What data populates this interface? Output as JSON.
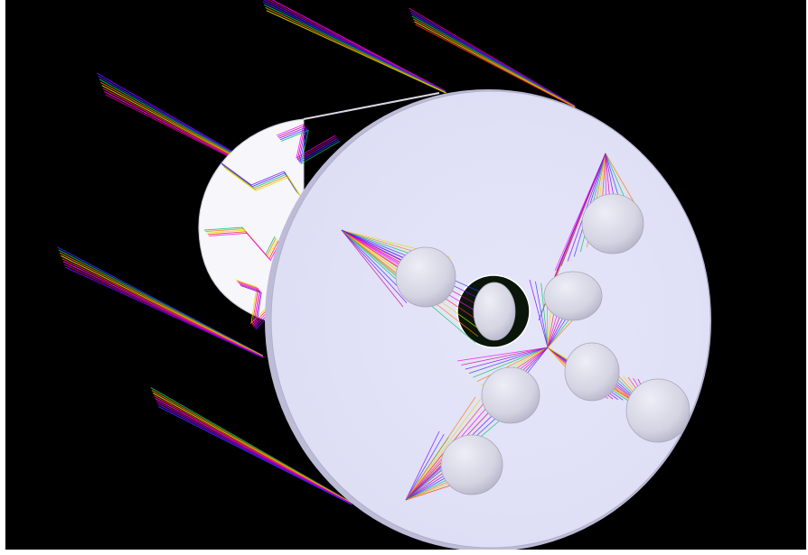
{
  "scene": {
    "background": "#000000",
    "frame_color": "#ffffff",
    "colors": {
      "disc_face": "#dcdcf4",
      "disc_edge": "#bcbcd8",
      "rear_cylinder": "#f6f6fb",
      "sphere_fill": "#d4d4e2",
      "sphere_shade": "#b6b6ca",
      "hole": "#0a160a"
    },
    "ray_palette": [
      "#ff00ff",
      "#c8007a",
      "#7a00ff",
      "#3a2cff",
      "#00c060",
      "#ff7a00",
      "#e0e000",
      "#ff2e2e"
    ],
    "objects": [
      "ray-trace-viewport",
      "rear-cylinder",
      "front-disc",
      "spherical-mirrors",
      "incoming-ray-bundles",
      "internal-ray-fans",
      "central-aperture"
    ]
  }
}
